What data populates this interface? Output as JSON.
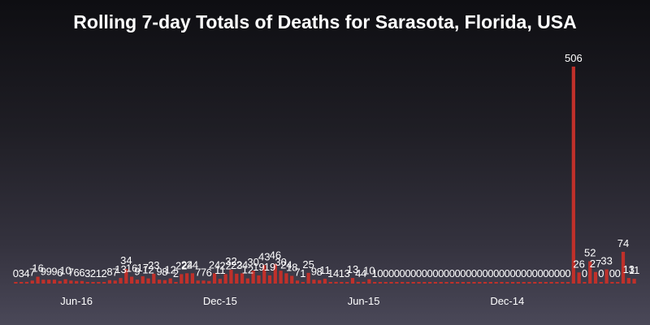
{
  "chart_data": {
    "type": "bar",
    "title": "Rolling 7-day Totals of Deaths for Sarasota, Florida, USA",
    "xlabel": "",
    "ylabel": "",
    "bar_color": "#c0302a",
    "text_color": "#ffffff",
    "grid": false,
    "ylim": [
      0,
      540
    ],
    "x_tick_labels": [
      {
        "label": "Jun-16",
        "bar_index": 11
      },
      {
        "label": "Dec-15",
        "bar_index": 37
      },
      {
        "label": "Jun-15",
        "bar_index": 63
      },
      {
        "label": "Dec-14",
        "bar_index": 89
      }
    ],
    "values": [
      0,
      3,
      4,
      7,
      16,
      9,
      9,
      9,
      6,
      10,
      7,
      6,
      6,
      3,
      2,
      1,
      2,
      8,
      7,
      13,
      34,
      16,
      9,
      17,
      12,
      23,
      9,
      8,
      12,
      2,
      22,
      24,
      24,
      7,
      7,
      6,
      24,
      11,
      22,
      32,
      23,
      24,
      12,
      30,
      19,
      43,
      19,
      46,
      30,
      24,
      18,
      7,
      1,
      25,
      9,
      8,
      11,
      1,
      4,
      1,
      3,
      13,
      4,
      4,
      10,
      1,
      0,
      0,
      0,
      0,
      0,
      0,
      0,
      0,
      0,
      0,
      0,
      0,
      0,
      0,
      0,
      0,
      0,
      0,
      0,
      0,
      0,
      0,
      0,
      0,
      0,
      0,
      0,
      0,
      0,
      0,
      0,
      0,
      0,
      0,
      0,
      506,
      26,
      0,
      52,
      27,
      0,
      33,
      0,
      0,
      74,
      13,
      11
    ]
  }
}
